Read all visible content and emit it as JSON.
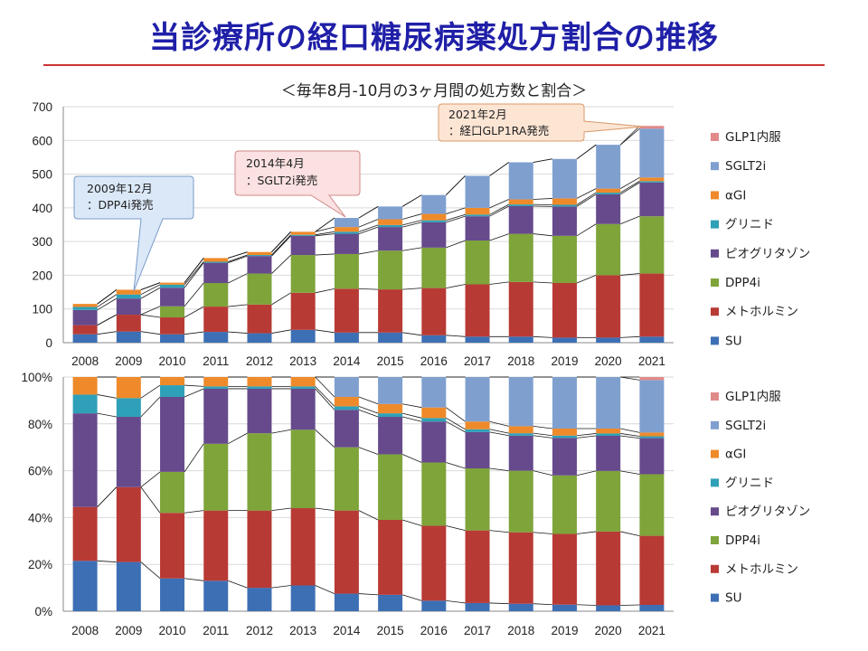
{
  "title": "当診療所の経口糖尿病薬処方割合の推移",
  "subtitle": "＜毎年8月-10月の3ヶ月間の処方数と割合＞",
  "colors": {
    "SU": "#3d6fb4",
    "metformin": "#b83a35",
    "DPP4i": "#7ea43a",
    "pioglitazone": "#664a8c",
    "glinide": "#2ea0b8",
    "aGI": "#ee8a2a",
    "SGLT2i": "#7f9fcf",
    "GLP1": "#e08a8a"
  },
  "callouts": [
    {
      "line1": "2009年12月",
      "line2": "：DPP4i発売"
    },
    {
      "line1": "2014年4月",
      "line2": "：SGLT2i発売"
    },
    {
      "line1": "2021年2月",
      "line2": "：経口GLP1RA発売"
    }
  ],
  "chart_data": [
    {
      "type": "bar",
      "stacked": true,
      "title": "",
      "categories": [
        "2008",
        "2009",
        "2010",
        "2011",
        "2012",
        "2013",
        "2014",
        "2015",
        "2016",
        "2017",
        "2018",
        "2019",
        "2020",
        "2021"
      ],
      "ylim": [
        0,
        700
      ],
      "yticks": [
        "0",
        "100",
        "200",
        "300",
        "400",
        "500",
        "600",
        "700"
      ],
      "legend_position": "right",
      "series": [
        {
          "name": "SU",
          "key": "SU",
          "values": [
            25,
            33,
            25,
            32,
            28,
            38,
            30,
            30,
            22,
            18,
            18,
            15,
            15,
            18
          ]
        },
        {
          "name": "メトホルミン",
          "key": "metformin",
          "values": [
            27,
            50,
            50,
            75,
            85,
            110,
            130,
            128,
            140,
            155,
            162,
            162,
            185,
            187
          ]
        },
        {
          "name": "DPP4i",
          "key": "DPP4i",
          "values": [
            0,
            0,
            33,
            70,
            92,
            112,
            103,
            115,
            120,
            130,
            143,
            140,
            152,
            170
          ]
        },
        {
          "name": "ピオグリタゾン",
          "key": "pioglitazone",
          "values": [
            45,
            48,
            55,
            60,
            52,
            57,
            60,
            70,
            75,
            72,
            82,
            87,
            88,
            100
          ]
        },
        {
          "name": "グリニド",
          "key": "glinide",
          "values": [
            9,
            12,
            9,
            3,
            3,
            3,
            6,
            6,
            6,
            5,
            5,
            5,
            5,
            4
          ]
        },
        {
          "name": "αGI",
          "key": "aGI",
          "values": [
            9,
            14,
            6,
            11,
            9,
            9,
            14,
            17,
            19,
            20,
            15,
            19,
            12,
            11
          ]
        },
        {
          "name": "SGLT2i",
          "key": "SGLT2i",
          "values": [
            0,
            0,
            0,
            0,
            0,
            0,
            27,
            38,
            56,
            95,
            110,
            117,
            130,
            145
          ]
        },
        {
          "name": "GLP1内服",
          "key": "GLP1",
          "values": [
            0,
            0,
            0,
            0,
            0,
            0,
            0,
            0,
            0,
            0,
            0,
            0,
            0,
            8
          ]
        }
      ]
    },
    {
      "type": "bar",
      "stacked": true,
      "percent": true,
      "title": "",
      "categories": [
        "2008",
        "2009",
        "2010",
        "2011",
        "2012",
        "2013",
        "2014",
        "2015",
        "2016",
        "2017",
        "2018",
        "2019",
        "2020",
        "2021"
      ],
      "ylim": [
        0,
        100
      ],
      "yticks": [
        "0%",
        "20%",
        "40%",
        "60%",
        "80%",
        "100%"
      ],
      "legend_position": "right",
      "series": [
        {
          "name": "SU",
          "key": "SU",
          "values": [
            21.5,
            21,
            14,
            13,
            10,
            11,
            7.5,
            7,
            4.5,
            3.5,
            3.2,
            2.8,
            2.5,
            2.7
          ]
        },
        {
          "name": "メトホルミン",
          "key": "metformin",
          "values": [
            23,
            32,
            28,
            30,
            33,
            33,
            35.5,
            32,
            32,
            31,
            30.5,
            30.2,
            31.5,
            29.5
          ]
        },
        {
          "name": "DPP4i",
          "key": "DPP4i",
          "values": [
            0,
            0,
            17.5,
            28.5,
            33,
            33.5,
            27,
            28,
            27,
            26.5,
            26.3,
            25,
            25.9,
            26.3
          ]
        },
        {
          "name": "ピオグリタゾン",
          "key": "pioglitazone",
          "values": [
            40,
            30,
            32,
            23.5,
            19,
            17.5,
            16,
            16,
            17.5,
            15.5,
            15,
            16,
            15,
            15.4
          ]
        },
        {
          "name": "グリニド",
          "key": "glinide",
          "values": [
            8,
            8,
            5,
            1,
            1,
            1,
            1.5,
            1.5,
            1.5,
            1.2,
            1,
            1,
            1,
            0.8
          ]
        },
        {
          "name": "αGI",
          "key": "aGI",
          "values": [
            7.5,
            9,
            3.5,
            4,
            4,
            4,
            4,
            4,
            4.5,
            3.3,
            3,
            3,
            2.1,
            1.6
          ]
        },
        {
          "name": "SGLT2i",
          "key": "SGLT2i",
          "values": [
            0,
            0,
            0,
            0,
            0,
            0,
            8.5,
            11.5,
            13,
            19,
            21,
            22,
            22,
            22.4
          ]
        },
        {
          "name": "GLP1内服",
          "key": "GLP1",
          "values": [
            0,
            0,
            0,
            0,
            0,
            0,
            0,
            0,
            0,
            0,
            0,
            0,
            0,
            1.3
          ]
        }
      ]
    }
  ]
}
